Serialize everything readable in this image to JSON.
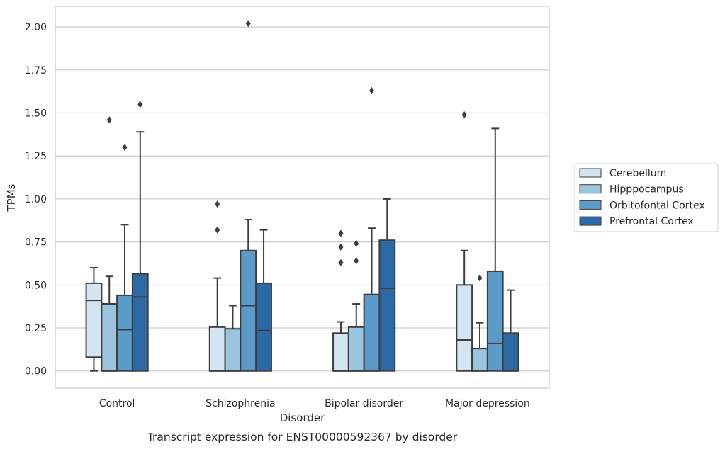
{
  "caption": "Transcript expression for ENST00000592367 by disorder",
  "chart_data": {
    "type": "box",
    "xlabel": "Disorder",
    "ylabel": "TPMs",
    "ylim": [
      -0.1,
      2.12
    ],
    "yticks": [
      0.0,
      0.25,
      0.5,
      0.75,
      1.0,
      1.25,
      1.5,
      1.75,
      2.0
    ],
    "ytick_labels": [
      "0.00",
      "0.25",
      "0.50",
      "0.75",
      "1.00",
      "1.25",
      "1.50",
      "1.75",
      "2.00"
    ],
    "categories": [
      "Control",
      "Schizophrenia",
      "Bipolar disorder",
      "Major depression"
    ],
    "grid": "horizontal",
    "legend_position": "right",
    "series": [
      {
        "name": "Cerebellum",
        "color": "#d3e4f2",
        "boxes": [
          {
            "low": 0.0,
            "q1": 0.08,
            "median": 0.41,
            "q3": 0.51,
            "high": 0.6,
            "outliers": []
          },
          {
            "low": 0.0,
            "q1": 0.0,
            "median": 0.0,
            "q3": 0.255,
            "high": 0.54,
            "outliers": [
              0.82,
              0.97
            ]
          },
          {
            "low": 0.0,
            "q1": 0.0,
            "median": 0.0,
            "q3": 0.22,
            "high": 0.285,
            "outliers": [
              0.63,
              0.72,
              0.8
            ]
          },
          {
            "low": 0.0,
            "q1": 0.0,
            "median": 0.18,
            "q3": 0.5,
            "high": 0.7,
            "outliers": [
              1.49
            ]
          }
        ]
      },
      {
        "name": "Hipppocampus",
        "color": "#9bc5df",
        "boxes": [
          {
            "low": 0.0,
            "q1": 0.0,
            "median": 0.0,
            "q3": 0.39,
            "high": 0.55,
            "outliers": [
              1.46
            ]
          },
          {
            "low": 0.0,
            "q1": 0.0,
            "median": 0.0,
            "q3": 0.245,
            "high": 0.38,
            "outliers": []
          },
          {
            "low": 0.0,
            "q1": 0.0,
            "median": 0.0,
            "q3": 0.255,
            "high": 0.39,
            "outliers": [
              0.64,
              0.74
            ]
          },
          {
            "low": 0.0,
            "q1": 0.0,
            "median": 0.0,
            "q3": 0.13,
            "high": 0.28,
            "outliers": [
              0.54
            ]
          }
        ]
      },
      {
        "name": "Orbitofontal Cortex",
        "color": "#5b9bc9",
        "boxes": [
          {
            "low": 0.0,
            "q1": 0.0,
            "median": 0.24,
            "q3": 0.44,
            "high": 0.85,
            "outliers": [
              1.3
            ]
          },
          {
            "low": 0.0,
            "q1": 0.0,
            "median": 0.38,
            "q3": 0.7,
            "high": 0.88,
            "outliers": [
              2.02
            ]
          },
          {
            "low": 0.0,
            "q1": 0.0,
            "median": 0.0,
            "q3": 0.445,
            "high": 0.83,
            "outliers": [
              1.63
            ]
          },
          {
            "low": 0.0,
            "q1": 0.0,
            "median": 0.16,
            "q3": 0.58,
            "high": 1.41,
            "outliers": []
          }
        ]
      },
      {
        "name": "Prefrontal Cortex",
        "color": "#2c6aa6",
        "boxes": [
          {
            "low": 0.0,
            "q1": 0.0,
            "median": 0.43,
            "q3": 0.565,
            "high": 1.39,
            "outliers": [
              1.55
            ]
          },
          {
            "low": 0.0,
            "q1": 0.0,
            "median": 0.235,
            "q3": 0.51,
            "high": 0.82,
            "outliers": []
          },
          {
            "low": 0.0,
            "q1": 0.0,
            "median": 0.48,
            "q3": 0.76,
            "high": 1.0,
            "outliers": []
          },
          {
            "low": 0.0,
            "q1": 0.0,
            "median": 0.0,
            "q3": 0.22,
            "high": 0.47,
            "outliers": []
          }
        ]
      }
    ]
  },
  "colors": {
    "grid": "#cccccc",
    "frame": "#cccccc",
    "edge": "#3d3d3d",
    "text": "#262626"
  }
}
